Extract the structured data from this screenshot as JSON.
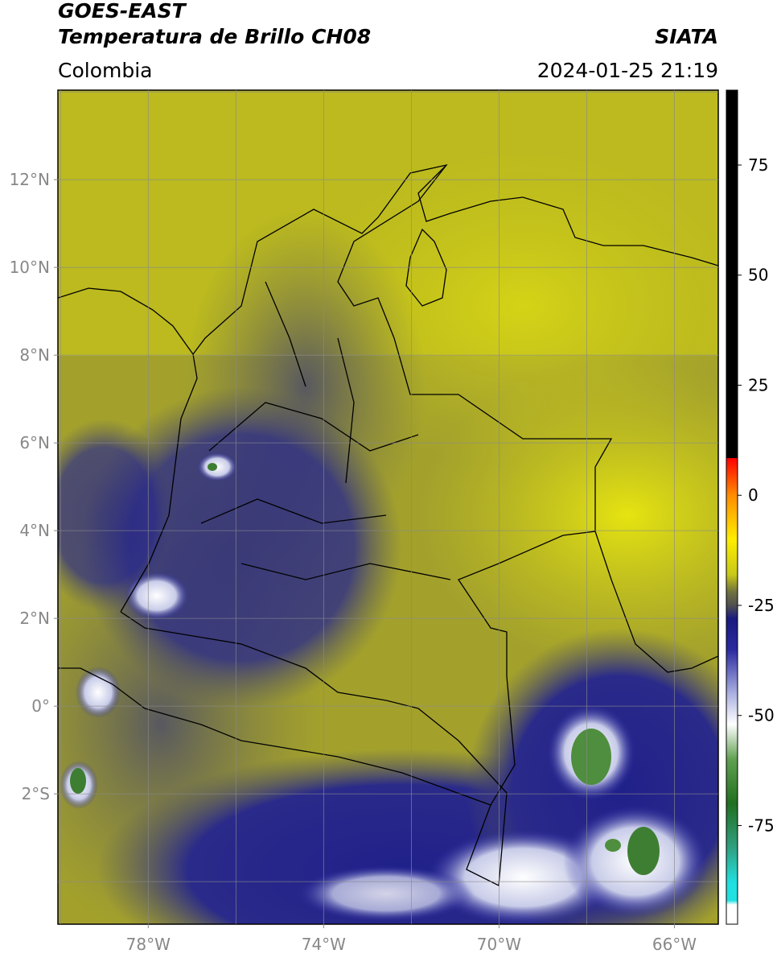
{
  "header": {
    "title": "GOES-EAST",
    "subtitle": "Temperatura de Brillo CH08",
    "source": "SIATA",
    "region": "Colombia",
    "datetime": "2024-01-25 21:19"
  },
  "map": {
    "lonlim": [
      -80.06,
      -65.0
    ],
    "latlim": [
      -4.97,
      14.04
    ],
    "lon_ticks": [
      {
        "value": -78,
        "label": "78°W"
      },
      {
        "value": -74,
        "label": "74°W"
      },
      {
        "value": -70,
        "label": "70°W"
      },
      {
        "value": -66,
        "label": "66°W"
      }
    ],
    "lat_ticks": [
      {
        "value": 12,
        "label": "12°N"
      },
      {
        "value": 10,
        "label": "10°N"
      },
      {
        "value": 8,
        "label": "8°N"
      },
      {
        "value": 6,
        "label": "6°N"
      },
      {
        "value": 4,
        "label": "4°N"
      },
      {
        "value": 2,
        "label": "2°N"
      },
      {
        "value": 0,
        "label": "0°"
      },
      {
        "value": -2,
        "label": "2°S"
      }
    ],
    "minor_lon": [
      -80,
      -76,
      -72,
      -68
    ],
    "minor_lat": [
      14,
      -4
    ],
    "grid": true
  },
  "colorbar": {
    "lim": [
      -97.4,
      92
    ],
    "ticks": [
      75,
      50,
      25,
      0,
      -25,
      -50,
      -75
    ],
    "stops": [
      {
        "value": 92,
        "color": "#000000"
      },
      {
        "value": 8.5,
        "color": "#000000"
      },
      {
        "value": 8.4,
        "color": "#ff0000"
      },
      {
        "value": 0,
        "color": "#ff8c00"
      },
      {
        "value": -10,
        "color": "#ffee00"
      },
      {
        "value": -18,
        "color": "#c8c818"
      },
      {
        "value": -22,
        "color": "#707040"
      },
      {
        "value": -25,
        "color": "#505050"
      },
      {
        "value": -28,
        "color": "#1a1a80"
      },
      {
        "value": -35,
        "color": "#2a2aa0"
      },
      {
        "value": -45,
        "color": "#aab0e0"
      },
      {
        "value": -52,
        "color": "#ffffff"
      },
      {
        "value": -60,
        "color": "#60a050"
      },
      {
        "value": -70,
        "color": "#207020"
      },
      {
        "value": -80,
        "color": "#30a080"
      },
      {
        "value": -88,
        "color": "#20e0e0"
      },
      {
        "value": -92,
        "color": "#20e0e0"
      },
      {
        "value": -93,
        "color": "#ffffff"
      },
      {
        "value": -97.4,
        "color": "#ffffff"
      }
    ]
  }
}
